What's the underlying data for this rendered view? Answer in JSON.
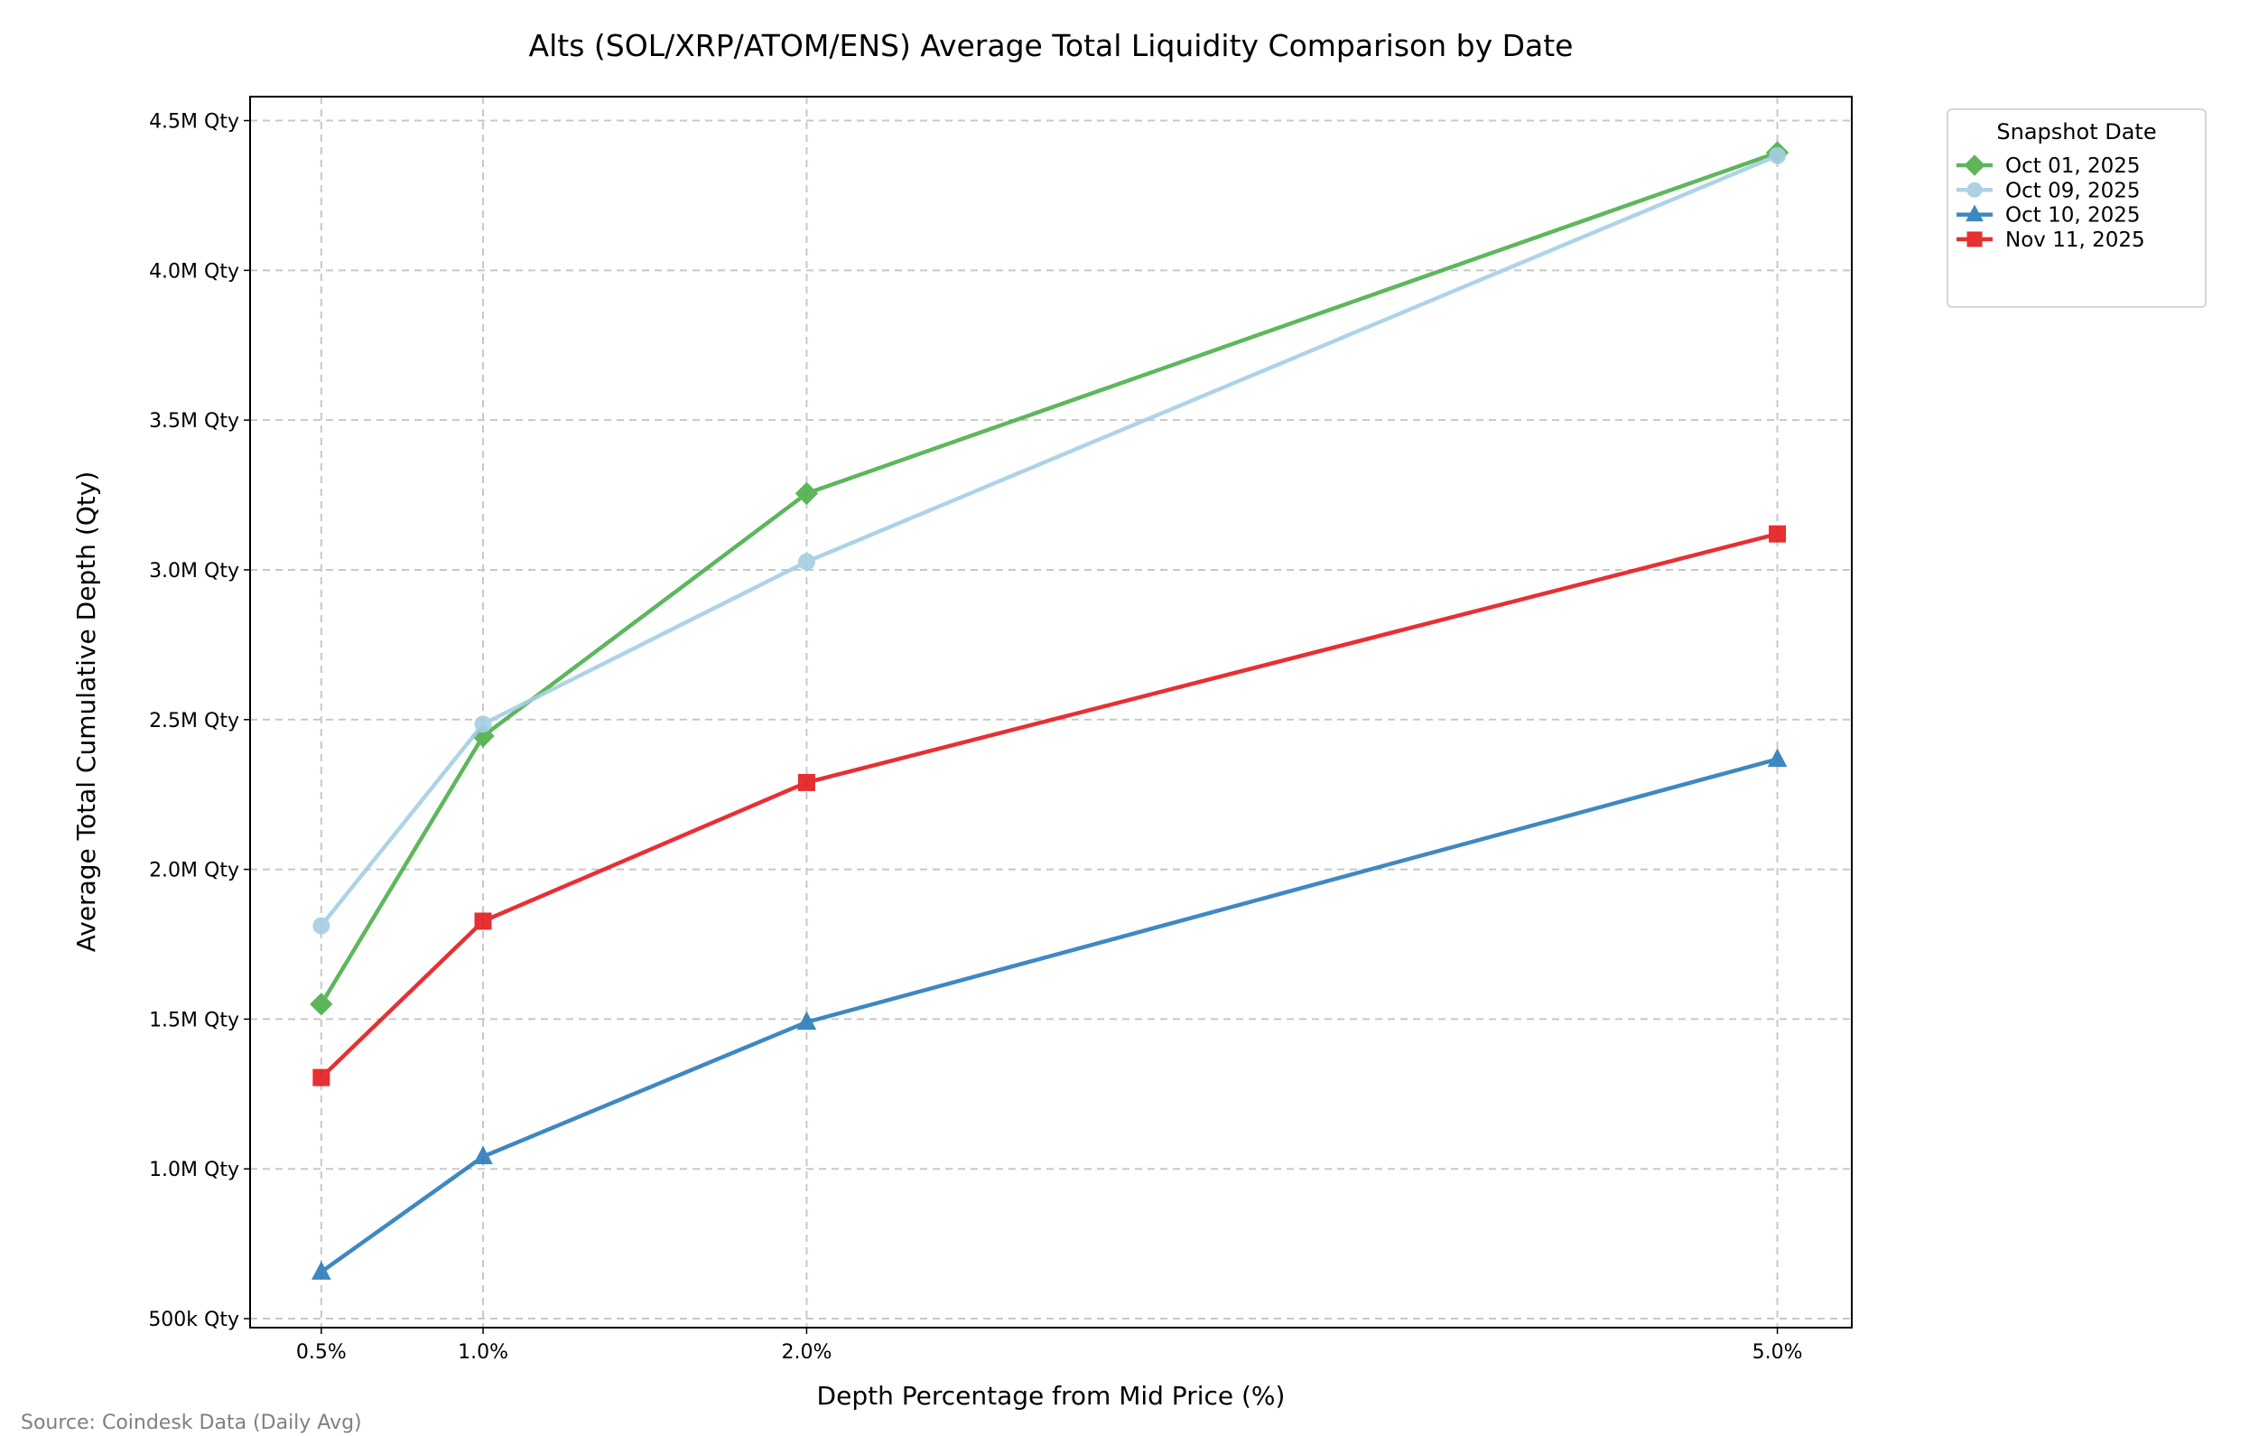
{
  "chart_data": {
    "type": "line",
    "title": "Alts (SOL/XRP/ATOM/ENS) Average Total Liquidity Comparison by Date",
    "xlabel": "Depth Percentage from Mid Price (%)",
    "ylabel": "Average Total Cumulative Depth (Qty)",
    "x": [
      0.5,
      1.0,
      2.0,
      5.0
    ],
    "x_tick_labels": [
      "0.5%",
      "1.0%",
      "2.0%",
      "5.0%"
    ],
    "y_ticks": [
      500000,
      1000000,
      1500000,
      2000000,
      2500000,
      3000000,
      3500000,
      4000000,
      4500000
    ],
    "y_tick_labels": [
      "500k Qty",
      "1.0M Qty",
      "1.5M Qty",
      "2.0M Qty",
      "2.5M Qty",
      "3.0M Qty",
      "3.5M Qty",
      "4.0M Qty",
      "4.5M Qty"
    ],
    "xlim": [
      0.28,
      5.23
    ],
    "ylim": [
      470000,
      4580000
    ],
    "grid": true,
    "legend": {
      "title": "Snapshot Date",
      "placement": "outside-top-right"
    },
    "series": [
      {
        "name": "Oct 01, 2025",
        "color": "#4daf4a",
        "marker": "diamond",
        "values": [
          1550000,
          2445000,
          3255000,
          4393000
        ]
      },
      {
        "name": "Oct 09, 2025",
        "color": "#a6cee3",
        "marker": "circle",
        "values": [
          1812000,
          2485000,
          3027000,
          4383000
        ]
      },
      {
        "name": "Oct 10, 2025",
        "color": "#2b7bba",
        "marker": "triangle",
        "values": [
          656000,
          1041000,
          1490000,
          2368000
        ]
      },
      {
        "name": "Nov 11, 2025",
        "color": "#e41a1c",
        "marker": "square",
        "values": [
          1305000,
          1827000,
          2290000,
          3120000
        ]
      }
    ]
  },
  "footer": {
    "source": "Source: Coindesk Data (Daily Avg)"
  }
}
